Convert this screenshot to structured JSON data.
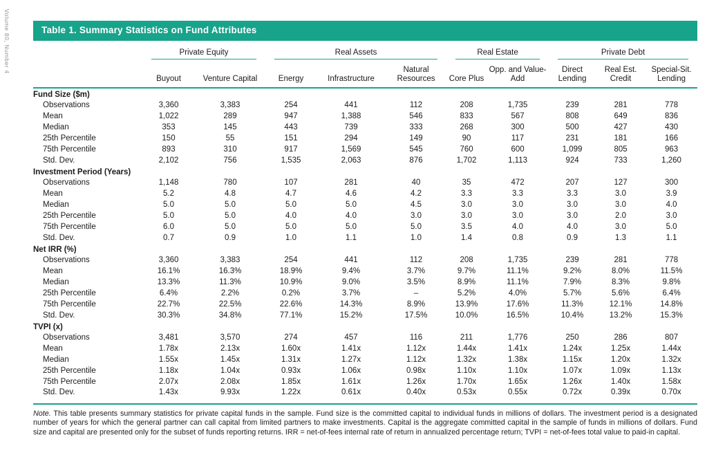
{
  "colors": {
    "accent_teal": "#18a38b",
    "spine_gray": "#8f8f8f",
    "text": "#1a1a1a"
  },
  "sidebar": {
    "spine_text": "Volume 80, Number 4"
  },
  "table": {
    "title": "Table 1.  Summary Statistics on Fund Attributes",
    "column_groups": [
      {
        "label": "Private Equity",
        "span": 2
      },
      {
        "label": "Real Assets",
        "span": 3
      },
      {
        "label": "Real Estate",
        "span": 2
      },
      {
        "label": "Private Debt",
        "span": 3
      }
    ],
    "columns": [
      "Buyout",
      "Venture Capital",
      "Energy",
      "Infrastructure",
      "Natural Resources",
      "Core Plus",
      "Opp. and Value-Add",
      "Direct Lending",
      "Real Est. Credit",
      "Special-Sit. Lending"
    ],
    "sections": [
      {
        "header": "Fund Size ($m)",
        "rows": [
          {
            "label": "Observations",
            "values": [
              "3,360",
              "3,383",
              "254",
              "441",
              "112",
              "208",
              "1,735",
              "239",
              "281",
              "778"
            ]
          },
          {
            "label": "Mean",
            "values": [
              "1,022",
              "289",
              "947",
              "1,388",
              "546",
              "833",
              "567",
              "808",
              "649",
              "836"
            ]
          },
          {
            "label": "Median",
            "values": [
              "353",
              "145",
              "443",
              "739",
              "333",
              "268",
              "300",
              "500",
              "427",
              "430"
            ]
          },
          {
            "label": "25th Percentile",
            "values": [
              "150",
              "55",
              "151",
              "294",
              "149",
              "90",
              "117",
              "231",
              "181",
              "166"
            ]
          },
          {
            "label": "75th Percentile",
            "values": [
              "893",
              "310",
              "917",
              "1,569",
              "545",
              "760",
              "600",
              "1,099",
              "805",
              "963"
            ]
          },
          {
            "label": "Std. Dev.",
            "values": [
              "2,102",
              "756",
              "1,535",
              "2,063",
              "876",
              "1,702",
              "1,113",
              "924",
              "733",
              "1,260"
            ]
          }
        ]
      },
      {
        "header": "Investment Period (Years)",
        "rows": [
          {
            "label": "Observations",
            "values": [
              "1,148",
              "780",
              "107",
              "281",
              "40",
              "35",
              "472",
              "207",
              "127",
              "300"
            ]
          },
          {
            "label": "Mean",
            "values": [
              "5.2",
              "4.8",
              "4.7",
              "4.6",
              "4.2",
              "3.3",
              "3.3",
              "3.3",
              "3.0",
              "3.9"
            ]
          },
          {
            "label": "Median",
            "values": [
              "5.0",
              "5.0",
              "5.0",
              "5.0",
              "4.5",
              "3.0",
              "3.0",
              "3.0",
              "3.0",
              "4.0"
            ]
          },
          {
            "label": "25th Percentile",
            "values": [
              "5.0",
              "5.0",
              "4.0",
              "4.0",
              "3.0",
              "3.0",
              "3.0",
              "3.0",
              "2.0",
              "3.0"
            ]
          },
          {
            "label": "75th Percentile",
            "values": [
              "6.0",
              "5.0",
              "5.0",
              "5.0",
              "5.0",
              "3.5",
              "4.0",
              "4.0",
              "3.0",
              "5.0"
            ]
          },
          {
            "label": "Std. Dev.",
            "values": [
              "0.7",
              "0.9",
              "1.0",
              "1.1",
              "1.0",
              "1.4",
              "0.8",
              "0.9",
              "1.3",
              "1.1"
            ]
          }
        ]
      },
      {
        "header": "Net IRR (%)",
        "rows": [
          {
            "label": "Observations",
            "values": [
              "3,360",
              "3,383",
              "254",
              "441",
              "112",
              "208",
              "1,735",
              "239",
              "281",
              "778"
            ]
          },
          {
            "label": "Mean",
            "values": [
              "16.1%",
              "16.3%",
              "18.9%",
              "9.4%",
              "3.7%",
              "9.7%",
              "11.1%",
              "9.2%",
              "8.0%",
              "11.5%"
            ]
          },
          {
            "label": "Median",
            "values": [
              "13.3%",
              "11.3%",
              "10.9%",
              "9.0%",
              "3.5%",
              "8.9%",
              "11.1%",
              "7.9%",
              "8.3%",
              "9.8%"
            ]
          },
          {
            "label": "25th Percentile",
            "values": [
              "6.4%",
              "2.2%",
              "0.2%",
              "3.7%",
              "–",
              "5.2%",
              "4.0%",
              "5.7%",
              "5.6%",
              "6.4%"
            ]
          },
          {
            "label": "75th Percentile",
            "values": [
              "22.7%",
              "22.5%",
              "22.6%",
              "14.3%",
              "8.9%",
              "13.9%",
              "17.6%",
              "11.3%",
              "12.1%",
              "14.8%"
            ]
          },
          {
            "label": "Std. Dev.",
            "values": [
              "30.3%",
              "34.8%",
              "77.1%",
              "15.2%",
              "17.5%",
              "10.0%",
              "16.5%",
              "10.4%",
              "13.2%",
              "15.3%"
            ]
          }
        ]
      },
      {
        "header": "TVPI (x)",
        "rows": [
          {
            "label": "Observations",
            "values": [
              "3,481",
              "3,570",
              "274",
              "457",
              "116",
              "211",
              "1,776",
              "250",
              "286",
              "807"
            ]
          },
          {
            "label": "Mean",
            "values": [
              "1.78x",
              "2.13x",
              "1.60x",
              "1.41x",
              "1.12x",
              "1.44x",
              "1.41x",
              "1.24x",
              "1.25x",
              "1.44x"
            ]
          },
          {
            "label": "Median",
            "values": [
              "1.55x",
              "1.45x",
              "1.31x",
              "1.27x",
              "1.12x",
              "1.32x",
              "1.38x",
              "1.15x",
              "1.20x",
              "1.32x"
            ]
          },
          {
            "label": "25th Percentile",
            "values": [
              "1.18x",
              "1.04x",
              "0.93x",
              "1.06x",
              "0.98x",
              "1.10x",
              "1.10x",
              "1.07x",
              "1.09x",
              "1.13x"
            ]
          },
          {
            "label": "75th Percentile",
            "values": [
              "2.07x",
              "2.08x",
              "1.85x",
              "1.61x",
              "1.26x",
              "1.70x",
              "1.65x",
              "1.26x",
              "1.40x",
              "1.58x"
            ]
          },
          {
            "label": "Std. Dev.",
            "values": [
              "1.43x",
              "9.93x",
              "1.22x",
              "0.61x",
              "0.40x",
              "0.53x",
              "0.55x",
              "0.72x",
              "0.39x",
              "0.70x"
            ]
          }
        ]
      }
    ]
  },
  "note": {
    "label": "Note.",
    "text": "This table presents summary statistics for private capital funds in the sample. Fund size is the committed capital to individual funds in millions of dollars. The investment period is a designated number of years for which the general partner can call capital from limited partners to make investments. Capital is the aggregate committed capital in the sample of funds in millions of dollars. Fund size and capital are presented only for the subset of funds reporting returns. IRR = net-of-fees internal rate of return in annualized percentage return; TVPI = net-of-fees total value to paid-in capital."
  }
}
